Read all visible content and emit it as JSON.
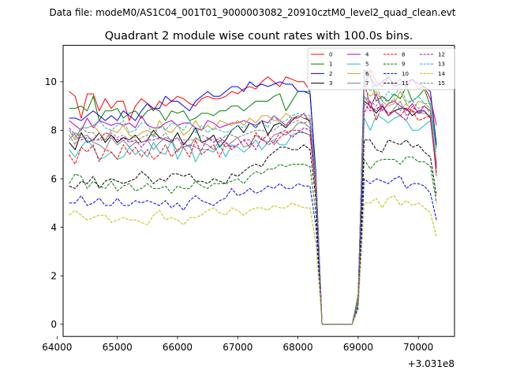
{
  "header": {
    "suptitle": "Data file: modeM0/AS1C04_001T01_9000003082_20910cztM0_level2_quad_clean.evt"
  },
  "chart_data": {
    "type": "line",
    "title": "Quadrant 2 module wise count rates with 100.0s bins.",
    "xlabel": "",
    "ylabel": "",
    "x_offset_label": "+3.031e8",
    "xlim": [
      64100,
      70600
    ],
    "ylim": [
      -0.5,
      11.5
    ],
    "x_ticks": [
      64000,
      65000,
      66000,
      67000,
      68000,
      69000,
      70000
    ],
    "x_tick_labels": [
      "64000",
      "65000",
      "66000",
      "67000",
      "68000",
      "69000",
      "70000"
    ],
    "y_ticks": [
      0,
      2,
      4,
      6,
      8,
      10
    ],
    "y_tick_labels": [
      "0",
      "2",
      "4",
      "6",
      "8",
      "10"
    ],
    "grid": false,
    "legend": {
      "placement": "top-right",
      "columns": 4
    },
    "x": [
      64200,
      64300,
      64400,
      64500,
      64600,
      64700,
      64800,
      64900,
      65000,
      65100,
      65200,
      65300,
      65400,
      65500,
      65600,
      65700,
      65800,
      65900,
      66000,
      66100,
      66200,
      66300,
      66400,
      66500,
      66600,
      66700,
      66800,
      66900,
      67000,
      67100,
      67200,
      67300,
      67400,
      67500,
      67600,
      67700,
      67800,
      67900,
      68000,
      68100,
      68200,
      68300,
      68400,
      68500,
      68600,
      68700,
      68800,
      68900,
      69000,
      69100,
      69200,
      69300,
      69400,
      69500,
      69600,
      69700,
      69800,
      69900,
      70000,
      70100,
      70200,
      70300
    ],
    "series": [
      {
        "name": "0",
        "color": "#ff0000",
        "dash": "solid",
        "values": [
          9.6,
          9.4,
          8.5,
          9.5,
          9.5,
          8.8,
          9.3,
          8.9,
          9.2,
          9.2,
          8.4,
          9.0,
          9.3,
          9.1,
          8.8,
          9.2,
          9.0,
          9.2,
          9.4,
          9.3,
          9.1,
          9.0,
          9.3,
          9.4,
          9.3,
          9.3,
          9.4,
          9.6,
          9.5,
          9.7,
          9.8,
          9.7,
          10.0,
          10.2,
          10.0,
          9.8,
          10.2,
          10.1,
          10.0,
          10.0,
          9.6,
          6.0,
          0.0,
          0.0,
          0.0,
          0.0,
          0.0,
          0.0,
          1.2,
          9.8,
          10.5,
          10.0,
          9.8,
          10.2,
          9.9,
          10.1,
          9.8,
          10.1,
          9.7,
          9.8,
          9.3,
          8.2
        ]
      },
      {
        "name": "1",
        "color": "#008000",
        "dash": "solid",
        "values": [
          8.9,
          8.9,
          9.0,
          8.8,
          9.4,
          8.4,
          8.8,
          8.8,
          8.9,
          8.5,
          8.7,
          8.8,
          8.5,
          8.8,
          8.9,
          8.8,
          8.4,
          8.8,
          8.7,
          8.8,
          8.4,
          8.5,
          8.7,
          8.7,
          8.6,
          8.8,
          8.8,
          9.0,
          9.0,
          8.8,
          9.0,
          9.2,
          9.2,
          9.2,
          9.4,
          9.5,
          8.8,
          9.2,
          9.6,
          9.6,
          9.6,
          6.0,
          0.0,
          0.0,
          0.0,
          0.0,
          0.0,
          0.0,
          1.2,
          10.0,
          10.3,
          9.2,
          9.4,
          9.2,
          9.5,
          9.3,
          9.8,
          9.2,
          9.4,
          9.7,
          9.0,
          7.3
        ]
      },
      {
        "name": "2",
        "color": "#0000ff",
        "dash": "solid",
        "values": [
          8.5,
          8.5,
          8.4,
          8.6,
          8.8,
          8.6,
          8.4,
          8.6,
          8.4,
          8.8,
          8.6,
          8.4,
          8.8,
          9.1,
          8.9,
          8.9,
          9.4,
          9.2,
          9.2,
          9.0,
          8.8,
          9.2,
          9.4,
          9.6,
          9.4,
          9.4,
          9.6,
          9.8,
          9.8,
          9.6,
          10.0,
          9.8,
          9.9,
          9.8,
          9.9,
          10.0,
          9.9,
          9.9,
          9.6,
          9.6,
          9.5,
          6.2,
          0.0,
          0.0,
          0.0,
          0.0,
          0.0,
          0.0,
          1.0,
          10.5,
          10.2,
          9.8,
          10.0,
          10.2,
          9.8,
          9.9,
          10.0,
          10.1,
          9.9,
          9.8,
          9.6,
          7.4
        ]
      },
      {
        "name": "3",
        "color": "#000000",
        "dash": "solid",
        "values": [
          7.5,
          7.2,
          7.9,
          7.5,
          7.6,
          7.9,
          7.5,
          7.8,
          7.5,
          7.7,
          7.6,
          7.8,
          7.5,
          7.6,
          8.0,
          7.7,
          7.6,
          7.5,
          7.9,
          7.4,
          7.7,
          8.1,
          7.5,
          7.6,
          7.8,
          7.3,
          7.6,
          8.0,
          8.2,
          7.9,
          8.3,
          8.1,
          8.4,
          7.8,
          8.2,
          8.3,
          8.1,
          8.4,
          8.6,
          8.5,
          8.4,
          5.8,
          0.0,
          0.0,
          0.0,
          0.0,
          0.0,
          0.0,
          1.0,
          9.2,
          9.0,
          8.7,
          9.0,
          8.6,
          8.8,
          8.9,
          8.9,
          8.6,
          8.8,
          8.8,
          8.5,
          6.6
        ]
      },
      {
        "name": "4",
        "color": "#bf00bf",
        "dash": "solid",
        "values": [
          8.4,
          8.2,
          8.0,
          8.5,
          8.1,
          8.4,
          8.3,
          8.2,
          8.3,
          8.2,
          8.3,
          8.1,
          8.6,
          8.2,
          8.1,
          8.1,
          8.3,
          8.4,
          8.2,
          8.3,
          8.3,
          8.1,
          8.0,
          8.4,
          8.3,
          8.1,
          8.2,
          8.3,
          8.3,
          8.4,
          8.3,
          8.2,
          8.4,
          8.3,
          8.6,
          8.4,
          8.2,
          8.5,
          8.5,
          8.7,
          8.3,
          5.9,
          0.0,
          0.0,
          0.0,
          0.0,
          0.0,
          0.0,
          1.0,
          10.1,
          8.9,
          9.5,
          8.8,
          9.1,
          9.2,
          9.0,
          8.8,
          9.1,
          8.7,
          9.0,
          8.8,
          6.5
        ]
      },
      {
        "name": "5",
        "color": "#17becf",
        "dash": "solid",
        "values": [
          7.2,
          6.9,
          7.3,
          7.6,
          7.3,
          6.8,
          6.9,
          7.1,
          6.8,
          6.9,
          7.3,
          7.0,
          7.2,
          6.9,
          7.5,
          7.1,
          7.0,
          7.6,
          6.8,
          7.3,
          7.4,
          6.7,
          7.2,
          7.2,
          7.1,
          7.4,
          6.9,
          7.4,
          7.3,
          7.1,
          7.3,
          7.6,
          7.2,
          7.5,
          7.6,
          7.4,
          7.4,
          7.8,
          7.9,
          7.9,
          7.8,
          5.5,
          0.0,
          0.0,
          0.0,
          0.0,
          0.0,
          0.0,
          0.9,
          8.5,
          8.0,
          8.6,
          8.5,
          8.3,
          8.5,
          8.6,
          8.4,
          8.0,
          8.0,
          8.2,
          8.4,
          6.3
        ]
      },
      {
        "name": "6",
        "color": "#d4a017",
        "dash": "solid",
        "values": [
          8.0,
          7.6,
          8.1,
          8.1,
          8.2,
          7.9,
          7.6,
          8.0,
          7.9,
          8.2,
          7.8,
          7.7,
          7.9,
          8.0,
          7.8,
          8.4,
          8.0,
          7.9,
          8.2,
          7.8,
          8.0,
          8.4,
          8.0,
          8.2,
          8.0,
          8.4,
          8.3,
          8.2,
          8.4,
          8.2,
          8.5,
          8.3,
          8.6,
          8.6,
          8.4,
          8.4,
          8.7,
          8.5,
          8.6,
          8.5,
          8.5,
          6.0,
          0.0,
          0.0,
          0.0,
          0.0,
          0.0,
          0.0,
          1.1,
          9.7,
          9.4,
          9.6,
          9.2,
          9.0,
          9.1,
          9.6,
          9.1,
          8.8,
          9.2,
          9.1,
          8.9,
          6.7
        ]
      },
      {
        "name": "7",
        "color": "#7f7f7f",
        "dash": "solid",
        "values": [
          7.6,
          7.9,
          7.7,
          7.8,
          7.5,
          7.4,
          7.2,
          7.7,
          7.4,
          7.6,
          7.3,
          7.5,
          7.5,
          7.6,
          7.2,
          7.5,
          7.7,
          7.6,
          7.1,
          7.5,
          7.3,
          7.7,
          7.5,
          7.4,
          7.2,
          7.6,
          7.3,
          7.5,
          7.7,
          7.3,
          7.4,
          7.8,
          7.6,
          7.5,
          7.8,
          7.9,
          7.8,
          8.0,
          8.3,
          8.3,
          8.1,
          5.6,
          0.0,
          0.0,
          0.0,
          0.0,
          0.0,
          0.0,
          0.9,
          9.4,
          9.0,
          8.8,
          9.1,
          8.6,
          8.9,
          9.2,
          8.6,
          8.8,
          8.7,
          8.7,
          8.6,
          6.1
        ]
      },
      {
        "name": "8",
        "color": "#ff0000",
        "dash": "dashed",
        "values": [
          7.0,
          6.6,
          7.3,
          7.1,
          7.4,
          6.7,
          7.2,
          7.1,
          6.8,
          7.4,
          7.0,
          7.3,
          6.9,
          7.2,
          6.8,
          7.0,
          7.4,
          6.9,
          7.2,
          7.3,
          6.9,
          7.6,
          7.0,
          7.2,
          7.4,
          6.9,
          7.5,
          7.2,
          7.4,
          7.6,
          7.3,
          7.9,
          7.6,
          7.8,
          7.4,
          7.7,
          7.9,
          8.0,
          8.0,
          7.9,
          7.8,
          5.4,
          0.0,
          0.0,
          0.0,
          0.0,
          0.0,
          0.0,
          0.9,
          8.7,
          9.2,
          8.4,
          9.0,
          8.7,
          8.8,
          8.6,
          8.9,
          8.8,
          8.4,
          8.5,
          8.6,
          6.2
        ]
      },
      {
        "name": "9",
        "color": "#008000",
        "dash": "dashed",
        "values": [
          5.8,
          6.2,
          6.1,
          5.6,
          5.9,
          5.7,
          5.6,
          5.9,
          5.5,
          5.7,
          5.8,
          5.5,
          5.6,
          5.8,
          5.6,
          5.6,
          5.7,
          5.4,
          5.7,
          5.6,
          5.6,
          5.9,
          5.7,
          5.6,
          5.8,
          5.8,
          5.8,
          5.9,
          6.0,
          5.8,
          6.1,
          6.3,
          6.2,
          6.4,
          6.4,
          6.6,
          6.5,
          6.6,
          6.6,
          6.6,
          6.5,
          4.5,
          0.0,
          0.0,
          0.0,
          0.0,
          0.0,
          0.0,
          0.8,
          6.8,
          6.4,
          6.7,
          6.8,
          6.8,
          6.8,
          6.6,
          6.9,
          6.9,
          6.7,
          6.7,
          6.5,
          5.0
        ]
      },
      {
        "name": "10",
        "color": "#0000ff",
        "dash": "dashed",
        "values": [
          5.0,
          5.0,
          5.3,
          4.9,
          5.0,
          5.2,
          4.9,
          4.9,
          5.2,
          4.9,
          4.9,
          5.1,
          5.0,
          5.1,
          5.0,
          4.9,
          5.1,
          4.8,
          5.0,
          4.7,
          5.1,
          5.3,
          5.1,
          5.0,
          4.9,
          5.1,
          5.2,
          5.6,
          5.3,
          5.4,
          5.6,
          5.4,
          5.5,
          5.7,
          5.6,
          5.8,
          5.6,
          5.6,
          5.8,
          5.7,
          5.7,
          4.0,
          0.0,
          0.0,
          0.0,
          0.0,
          0.0,
          0.0,
          0.7,
          6.0,
          5.8,
          6.0,
          5.9,
          5.8,
          6.0,
          6.1,
          5.6,
          5.8,
          5.8,
          5.7,
          5.4,
          4.3
        ]
      },
      {
        "name": "11",
        "color": "#000000",
        "dash": "dashed",
        "values": [
          5.7,
          5.6,
          5.9,
          5.8,
          6.1,
          5.6,
          5.9,
          6.0,
          5.9,
          5.8,
          5.9,
          6.0,
          6.3,
          6.1,
          5.8,
          6.0,
          5.9,
          6.2,
          6.2,
          6.1,
          6.2,
          5.9,
          5.9,
          5.8,
          6.0,
          5.9,
          5.8,
          6.2,
          6.1,
          6.3,
          6.5,
          6.6,
          6.5,
          6.9,
          7.1,
          7.3,
          7.3,
          7.2,
          7.2,
          7.4,
          7.2,
          5.1,
          0.0,
          0.0,
          0.0,
          0.0,
          0.0,
          0.0,
          0.9,
          7.6,
          7.6,
          7.2,
          7.1,
          7.6,
          7.5,
          7.4,
          7.6,
          7.3,
          7.4,
          7.1,
          6.9,
          5.3
        ]
      },
      {
        "name": "12",
        "color": "#bf00bf",
        "dash": "dashed",
        "values": [
          8.1,
          7.8,
          7.6,
          7.7,
          7.6,
          7.6,
          7.9,
          7.8,
          7.6,
          7.7,
          7.5,
          7.6,
          7.3,
          7.6,
          7.6,
          7.7,
          7.6,
          7.5,
          7.7,
          7.3,
          7.4,
          7.3,
          7.2,
          7.7,
          7.5,
          7.7,
          7.5,
          7.3,
          7.4,
          7.6,
          7.6,
          7.2,
          7.7,
          7.4,
          7.5,
          7.9,
          8.0,
          7.7,
          7.9,
          8.1,
          8.0,
          5.6,
          0.0,
          0.0,
          0.0,
          0.0,
          0.0,
          0.0,
          0.9,
          9.1,
          8.8,
          8.9,
          9.0,
          8.6,
          8.8,
          8.6,
          8.4,
          9.0,
          8.7,
          8.8,
          8.5,
          6.4
        ]
      },
      {
        "name": "13",
        "color": "#17becf",
        "dash": "dashed",
        "values": [
          8.0,
          7.7,
          8.1,
          8.1,
          8.2,
          8.4,
          8.1,
          8.0,
          8.2,
          8.4,
          7.9,
          8.0,
          8.3,
          8.3,
          7.7,
          8.2,
          8.0,
          8.3,
          8.2,
          8.0,
          8.4,
          7.9,
          8.2,
          7.9,
          8.1,
          8.0,
          7.9,
          8.0,
          8.2,
          8.1,
          8.3,
          8.1,
          8.4,
          8.1,
          8.6,
          8.3,
          8.4,
          8.6,
          8.7,
          8.6,
          8.6,
          6.0,
          0.0,
          0.0,
          0.0,
          0.0,
          0.0,
          0.0,
          1.1,
          10.1,
          9.6,
          9.9,
          9.2,
          9.6,
          9.4,
          9.8,
          9.2,
          9.2,
          9.4,
          9.1,
          9.1,
          7.1
        ]
      },
      {
        "name": "14",
        "color": "#bfbf00",
        "dash": "dashed",
        "values": [
          4.5,
          4.7,
          4.5,
          4.3,
          4.4,
          4.5,
          4.5,
          4.2,
          4.3,
          4.4,
          4.3,
          4.3,
          4.2,
          4.1,
          4.5,
          4.7,
          4.3,
          4.4,
          4.3,
          4.1,
          4.4,
          4.4,
          4.5,
          4.7,
          4.8,
          4.6,
          4.5,
          4.8,
          4.7,
          4.5,
          4.7,
          4.8,
          4.8,
          4.7,
          4.9,
          4.8,
          4.8,
          5.0,
          4.9,
          4.8,
          4.8,
          3.3,
          0.0,
          0.0,
          0.0,
          0.0,
          0.0,
          0.0,
          0.6,
          5.0,
          5.0,
          5.2,
          4.8,
          5.2,
          5.3,
          4.9,
          5.1,
          4.9,
          5.0,
          4.8,
          4.6,
          3.6
        ]
      },
      {
        "name": "15",
        "color": "#7f7f7f",
        "dash": "dashed",
        "values": [
          7.8,
          7.4,
          8.1,
          7.9,
          7.9,
          7.6,
          7.6,
          7.9,
          7.7,
          7.8,
          7.6,
          7.5,
          7.7,
          7.8,
          7.8,
          7.6,
          7.9,
          7.5,
          7.7,
          7.6,
          7.6,
          7.6,
          7.8,
          7.7,
          7.6,
          7.5,
          7.8,
          7.8,
          7.7,
          7.8,
          7.9,
          8.0,
          8.0,
          7.9,
          8.0,
          8.2,
          8.2,
          8.3,
          8.4,
          8.3,
          8.4,
          5.8,
          0.0,
          0.0,
          0.0,
          0.0,
          0.0,
          0.0,
          0.9,
          9.4,
          9.2,
          9.0,
          9.4,
          9.1,
          9.3,
          8.8,
          9.1,
          9.2,
          8.9,
          9.0,
          8.7,
          6.6
        ]
      }
    ]
  }
}
